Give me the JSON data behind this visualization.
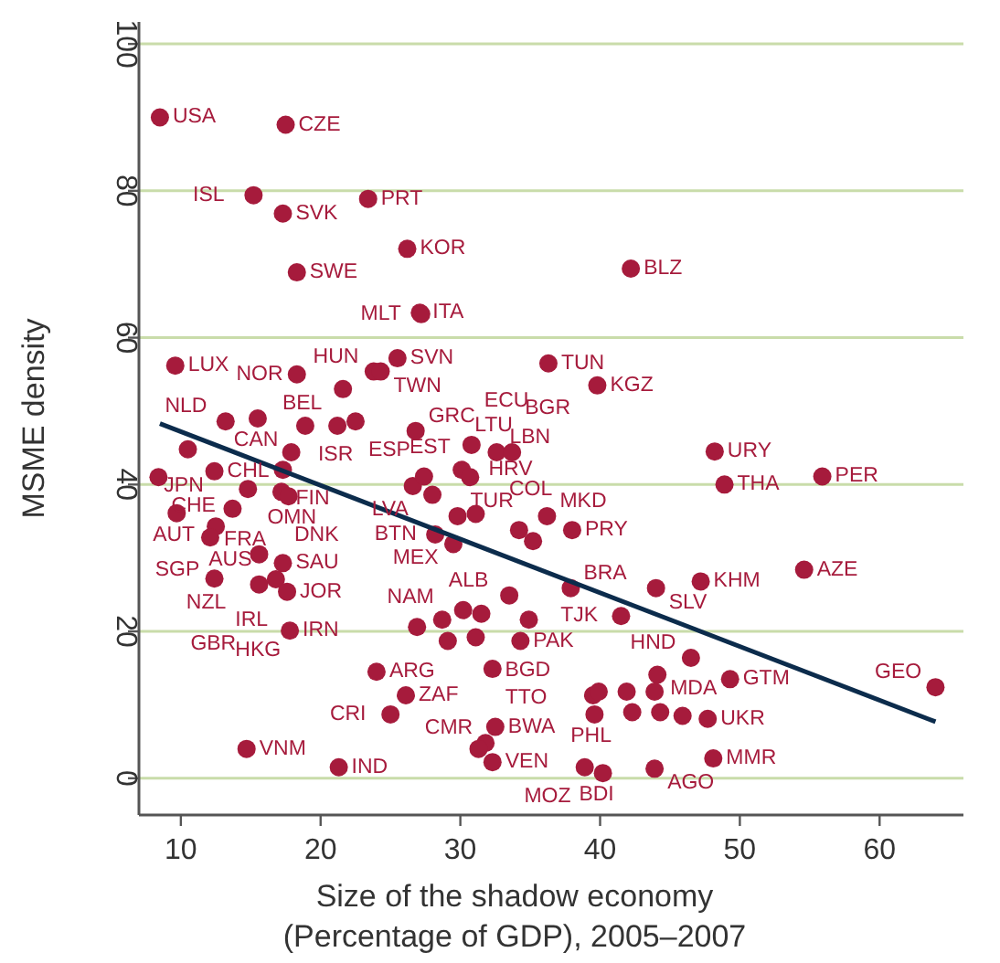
{
  "chart_data": {
    "type": "scatter",
    "xlabel": "Size of the shadow economy\n(Percentage of GDP), 2005–2007",
    "ylabel": "MSME density",
    "xlim": [
      7,
      66
    ],
    "ylim": [
      -5,
      103
    ],
    "xticks": [
      10,
      20,
      30,
      40,
      50,
      60
    ],
    "yticks": [
      0,
      20,
      40,
      60,
      80,
      100
    ],
    "grid": "y",
    "series": [
      {
        "marker": "circle",
        "color": "#a61b3c",
        "x": [
          8.5,
          17.5,
          15.2,
          23.4,
          17.3,
          18.3,
          26.2,
          42.2,
          27.1,
          27.2,
          25.5,
          18.3,
          23.8,
          24.3,
          21.6,
          36.3,
          39.8,
          9.6,
          26.8,
          13.2,
          15.5,
          18.9,
          21.2,
          22.5,
          17.9,
          10.5,
          8.4,
          12.4,
          17.3,
          14.8,
          17.2,
          17.7,
          9.7,
          13.7,
          12.5,
          12.1,
          15.6,
          17.3,
          12.4,
          15.6,
          16.8,
          17.6,
          17.8,
          24,
          26.1,
          25,
          14.7,
          21.3,
          32.5,
          31.8,
          31.3,
          32.3,
          26.9,
          28.7,
          30.2,
          29.1,
          31.1,
          31.5,
          33.5,
          34.3,
          34.9,
          37.9,
          44,
          47.2,
          54.6,
          41.5,
          46.5,
          44.1,
          49.3,
          32.3,
          48.2,
          48.9,
          55.9,
          36.2,
          38,
          35.2,
          29.5,
          28.2,
          29.8,
          31.1,
          34.2,
          28,
          26.6,
          27.4,
          30.1,
          30.7,
          30.8,
          32.6,
          33.7,
          39.5,
          39.9,
          41.9,
          43.9,
          39.6,
          42.3,
          44.3,
          45.9,
          47.7,
          48.1,
          43.9,
          40.2,
          38.9,
          64
        ],
        "values": [
          90,
          89,
          79.4,
          78.9,
          76.9,
          68.9,
          72.1,
          69.4,
          63.4,
          63.2,
          57.2,
          55,
          55.4,
          55.4,
          53,
          56.5,
          53.5,
          56.2,
          47.3,
          48.6,
          49,
          48,
          48,
          48.6,
          44.4,
          44.8,
          41,
          41.8,
          42,
          39.4,
          39,
          38.4,
          36.1,
          36.7,
          34.3,
          32.8,
          30.5,
          29.3,
          27.2,
          26.4,
          27.1,
          25.4,
          20.1,
          14.5,
          11.3,
          8.7,
          4,
          1.5,
          7,
          4.8,
          4,
          2.2,
          20.6,
          21.6,
          22.9,
          18.7,
          19.2,
          22.4,
          24.9,
          18.7,
          21.6,
          25.9,
          25.9,
          26.8,
          28.4,
          22.1,
          16.4,
          14.1,
          13.5,
          14.9,
          44.5,
          40,
          41.1,
          35.7,
          33.8,
          32.3,
          31.9,
          33.2,
          35.7,
          36,
          33.8,
          38.6,
          39.8,
          41.1,
          42,
          41,
          45.4,
          44.4,
          44.4,
          11.3,
          11.8,
          11.8,
          11.8,
          8.7,
          9,
          9,
          8.5,
          8.1,
          2.7,
          1.3,
          0.7,
          1.5,
          12.4
        ]
      },
      {
        "type": "line",
        "color": "#0c2c4c",
        "x": [
          8.5,
          64
        ],
        "values": [
          48.3,
          7.7
        ]
      }
    ],
    "annotations": [
      {
        "text": "USA",
        "x": 8.5,
        "y": 90
      },
      {
        "text": "CZE",
        "x": 17.5,
        "y": 89
      },
      {
        "text": "ISL",
        "x": 15.2,
        "y": 79.4
      },
      {
        "text": "PRT",
        "x": 23.4,
        "y": 78.9
      },
      {
        "text": "SVK",
        "x": 17.3,
        "y": 76.9
      },
      {
        "text": "SWE",
        "x": 18.3,
        "y": 68.9
      },
      {
        "text": "KOR",
        "x": 26.2,
        "y": 72.1
      },
      {
        "text": "BLZ",
        "x": 42.2,
        "y": 69.4
      },
      {
        "text": "ITA",
        "x": 27.1,
        "y": 63.4
      },
      {
        "text": "MLT",
        "x": 27.2,
        "y": 63.2
      },
      {
        "text": "SVN",
        "x": 25.5,
        "y": 57.2
      },
      {
        "text": "NOR",
        "x": 18.3,
        "y": 55
      },
      {
        "text": "HUN",
        "x": 23.8,
        "y": 55.4
      },
      {
        "text": "TWN",
        "x": 24.3,
        "y": 55.4
      },
      {
        "text": "BEL",
        "x": 21.6,
        "y": 53
      },
      {
        "text": "TUN",
        "x": 36.3,
        "y": 56.5
      },
      {
        "text": "KGZ",
        "x": 39.8,
        "y": 53.5
      },
      {
        "text": "LUX",
        "x": 9.6,
        "y": 56.2
      },
      {
        "text": "GRC",
        "x": 26.8,
        "y": 47.3
      },
      {
        "text": "NLD",
        "x": 13.2,
        "y": 48.6
      },
      {
        "text": "CAN",
        "x": 15.5,
        "y": 49
      },
      {
        "text": "ISR",
        "x": 18.9,
        "y": 48
      },
      {
        "text": "ESP",
        "x": 22.5,
        "y": 48.6
      },
      {
        "text": "OMN",
        "x": 17.9,
        "y": 44.4
      },
      {
        "text": "JPN",
        "x": 10.5,
        "y": 44.8
      },
      {
        "text": "CHE",
        "x": 8.4,
        "y": 41
      },
      {
        "text": "CHL",
        "x": 12.4,
        "y": 41.8
      },
      {
        "text": "FIN",
        "x": 17.3,
        "y": 42
      },
      {
        "text": "FRA",
        "x": 14.8,
        "y": 39.4
      },
      {
        "text": "DNK",
        "x": 17.2,
        "y": 39
      },
      {
        "text": "AUT",
        "x": 9.7,
        "y": 36.1
      },
      {
        "text": "AUS",
        "x": 13.7,
        "y": 36.7
      },
      {
        "text": "SGP",
        "x": 12.5,
        "y": 34.3
      },
      {
        "text": "NZL",
        "x": 12.1,
        "y": 32.8
      },
      {
        "text": "IRL",
        "x": 15.6,
        "y": 30.5
      },
      {
        "text": "SAU",
        "x": 17.3,
        "y": 29.3
      },
      {
        "text": "GBR",
        "x": 12.4,
        "y": 27.2
      },
      {
        "text": "HKG",
        "x": 15.6,
        "y": 26.4
      },
      {
        "text": "JOR",
        "x": 17.6,
        "y": 25.4
      },
      {
        "text": "IRN",
        "x": 17.8,
        "y": 20.1
      },
      {
        "text": "ARG",
        "x": 24,
        "y": 14.5
      },
      {
        "text": "ZAF",
        "x": 26.1,
        "y": 11.3
      },
      {
        "text": "CRI",
        "x": 25,
        "y": 8.7
      },
      {
        "text": "VNM",
        "x": 14.7,
        "y": 4
      },
      {
        "text": "IND",
        "x": 21.3,
        "y": 1.5
      },
      {
        "text": "BWA",
        "x": 32.5,
        "y": 7
      },
      {
        "text": "CMR",
        "x": 31.8,
        "y": 4.8
      },
      {
        "text": "VEN",
        "x": 32.3,
        "y": 2.2
      },
      {
        "text": "NAM",
        "x": 29.1,
        "y": 18.7
      },
      {
        "text": "ALB",
        "x": 33.5,
        "y": 24.9
      },
      {
        "text": "PAK",
        "x": 34.3,
        "y": 18.7
      },
      {
        "text": "BGD",
        "x": 34.9,
        "y": 21.6
      },
      {
        "text": "BRA",
        "x": 37.9,
        "y": 25.9
      },
      {
        "text": "SLV",
        "x": 44,
        "y": 25.9
      },
      {
        "text": "KHM",
        "x": 47.2,
        "y": 26.8
      },
      {
        "text": "AZE",
        "x": 54.6,
        "y": 28.4
      },
      {
        "text": "TJK",
        "x": 41.5,
        "y": 22.1
      },
      {
        "text": "HND",
        "x": 46.5,
        "y": 16.4
      },
      {
        "text": "MDA",
        "x": 44.1,
        "y": 14.1
      },
      {
        "text": "GTM",
        "x": 49.3,
        "y": 13.5
      },
      {
        "text": "TTO",
        "x": 32.3,
        "y": 14.9
      },
      {
        "text": "URY",
        "x": 48.2,
        "y": 44.5
      },
      {
        "text": "THA",
        "x": 48.9,
        "y": 40
      },
      {
        "text": "PER",
        "x": 55.9,
        "y": 41.1
      },
      {
        "text": "MKD",
        "x": 36.2,
        "y": 35.7
      },
      {
        "text": "PRY",
        "x": 38,
        "y": 33.8
      },
      {
        "text": "COL",
        "x": 35.2,
        "y": 32.3
      },
      {
        "text": "MEX",
        "x": 29.5,
        "y": 31.9
      },
      {
        "text": "BTN",
        "x": 28.2,
        "y": 33.2
      },
      {
        "text": "TUR",
        "x": 29.8,
        "y": 35.7
      },
      {
        "text": "HRV",
        "x": 31.1,
        "y": 36
      },
      {
        "text": "LVA",
        "x": 28,
        "y": 38.6
      },
      {
        "text": "LTU",
        "x": 30.1,
        "y": 42
      },
      {
        "text": "EST",
        "x": 30.7,
        "y": 41
      },
      {
        "text": "ECU",
        "x": 30.8,
        "y": 45.4
      },
      {
        "text": "LBN",
        "x": 32.6,
        "y": 44.4
      },
      {
        "text": "BGR",
        "x": 33.7,
        "y": 44.4
      },
      {
        "text": "PHL",
        "x": 39.6,
        "y": 8.7
      },
      {
        "text": "UKR",
        "x": 47.7,
        "y": 8.1
      },
      {
        "text": "MMR",
        "x": 48.1,
        "y": 2.7
      },
      {
        "text": "AGO",
        "x": 43.9,
        "y": 1.3
      },
      {
        "text": "BDI",
        "x": 40.2,
        "y": 0.7
      },
      {
        "text": "MOZ",
        "x": 38.9,
        "y": 1.5
      },
      {
        "text": "GEO",
        "x": 64,
        "y": 12.4
      }
    ]
  }
}
